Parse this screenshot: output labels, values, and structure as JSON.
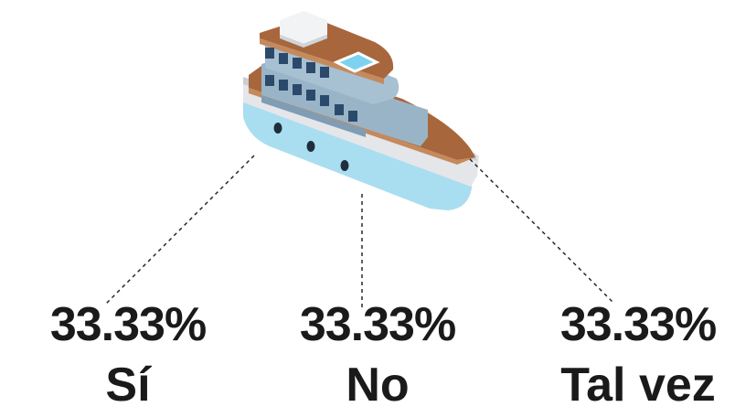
{
  "chart_data": {
    "type": "pie",
    "title": "",
    "categories": [
      "Sí",
      "No",
      "Tal vez"
    ],
    "values": [
      33.33,
      33.33,
      33.33
    ],
    "value_labels": [
      "33.33%",
      "33.33%",
      "33.33%"
    ],
    "center_icon": "ship-icon",
    "colors": {
      "text": "#1a1a1a",
      "hull_light": "#a8def0",
      "hull_band": "#e4e6ea",
      "deck": "#a8663c",
      "cabin": "#9ab4c7",
      "window": "#2b4a6b",
      "roof": "#f1f3f5",
      "pool": "#7dd3ef"
    }
  }
}
